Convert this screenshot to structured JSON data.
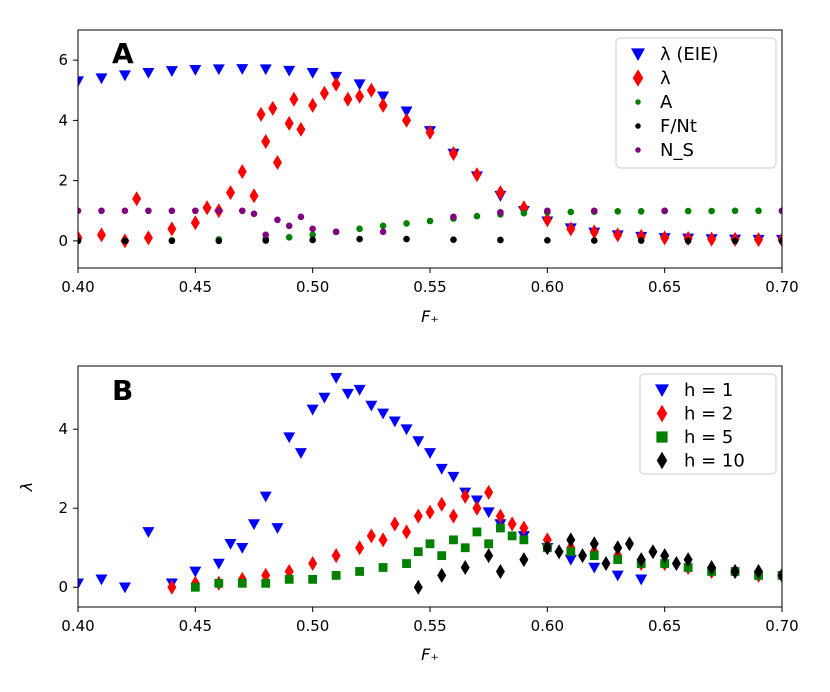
{
  "chart_data": [
    {
      "type": "scatter",
      "panel_label": "A",
      "xlabel": "F₊",
      "ylabel": "",
      "xlim": [
        0.4,
        0.7
      ],
      "ylim": [
        -0.9,
        7.0
      ],
      "xticks": [
        "0.40",
        "0.45",
        "0.50",
        "0.55",
        "0.60",
        "0.65",
        "0.70"
      ],
      "yticks": [
        "0",
        "2",
        "4",
        "6"
      ],
      "legend_position": "top-right",
      "series": [
        {
          "name": "λ (EIE)",
          "marker": "triangle-down",
          "color": "#0000ff",
          "x": [
            0.4,
            0.41,
            0.42,
            0.43,
            0.44,
            0.45,
            0.46,
            0.47,
            0.48,
            0.49,
            0.5,
            0.51,
            0.52,
            0.53,
            0.54,
            0.55,
            0.56,
            0.57,
            0.58,
            0.59,
            0.6,
            0.61,
            0.62,
            0.63,
            0.64,
            0.65,
            0.66,
            0.67,
            0.68,
            0.69,
            0.7
          ],
          "y": [
            5.3,
            5.4,
            5.5,
            5.58,
            5.64,
            5.68,
            5.7,
            5.71,
            5.7,
            5.65,
            5.58,
            5.45,
            5.2,
            4.8,
            4.3,
            3.65,
            2.9,
            2.15,
            1.5,
            1.0,
            0.65,
            0.42,
            0.28,
            0.19,
            0.14,
            0.1,
            0.08,
            0.06,
            0.05,
            0.04,
            0.04
          ]
        },
        {
          "name": "λ",
          "marker": "diamond",
          "color": "#ff0000",
          "x": [
            0.4,
            0.41,
            0.42,
            0.425,
            0.43,
            0.44,
            0.45,
            0.455,
            0.46,
            0.465,
            0.47,
            0.475,
            0.478,
            0.48,
            0.483,
            0.485,
            0.49,
            0.492,
            0.495,
            0.5,
            0.505,
            0.51,
            0.515,
            0.52,
            0.525,
            0.53,
            0.54,
            0.55,
            0.56,
            0.57,
            0.58,
            0.59,
            0.6,
            0.61,
            0.62,
            0.63,
            0.64,
            0.65,
            0.66,
            0.67,
            0.68,
            0.69,
            0.7
          ],
          "y": [
            0.1,
            0.2,
            0.0,
            1.4,
            0.1,
            0.4,
            0.6,
            1.1,
            1.0,
            1.6,
            2.3,
            1.5,
            4.2,
            3.3,
            4.4,
            2.6,
            3.9,
            4.7,
            3.7,
            4.5,
            4.9,
            5.2,
            4.7,
            4.8,
            5.0,
            4.5,
            4.0,
            3.6,
            2.9,
            2.2,
            1.6,
            1.1,
            0.7,
            0.4,
            0.3,
            0.2,
            0.15,
            0.1,
            0.08,
            0.06,
            0.05,
            0.04,
            0.03
          ]
        },
        {
          "name": "A",
          "marker": "circle",
          "color": "#008000",
          "x": [
            0.4,
            0.42,
            0.44,
            0.46,
            0.48,
            0.49,
            0.5,
            0.51,
            0.52,
            0.53,
            0.54,
            0.55,
            0.56,
            0.57,
            0.58,
            0.59,
            0.6,
            0.61,
            0.62,
            0.63,
            0.64,
            0.65,
            0.66,
            0.67,
            0.68,
            0.69,
            0.7
          ],
          "y": [
            0.0,
            0.0,
            0.02,
            0.05,
            0.08,
            0.12,
            0.2,
            0.3,
            0.4,
            0.5,
            0.58,
            0.66,
            0.74,
            0.82,
            0.88,
            0.92,
            0.95,
            0.96,
            0.97,
            0.98,
            0.98,
            0.99,
            0.99,
            0.99,
            1.0,
            1.0,
            1.0
          ]
        },
        {
          "name": "F/Nt",
          "marker": "circle",
          "color": "#000000",
          "x": [
            0.4,
            0.42,
            0.44,
            0.46,
            0.48,
            0.5,
            0.52,
            0.54,
            0.56,
            0.58,
            0.6,
            0.62,
            0.64,
            0.66,
            0.68,
            0.7
          ],
          "y": [
            0.0,
            0.0,
            0.0,
            0.0,
            0.01,
            0.03,
            0.06,
            0.06,
            0.04,
            0.03,
            0.02,
            0.01,
            0.01,
            0.0,
            0.0,
            0.0
          ]
        },
        {
          "name": "N_S",
          "marker": "circle",
          "color": "#800080",
          "x": [
            0.4,
            0.41,
            0.42,
            0.43,
            0.44,
            0.45,
            0.46,
            0.47,
            0.475,
            0.48,
            0.485,
            0.49,
            0.495,
            0.5,
            0.51,
            0.53,
            0.56,
            0.58,
            0.6,
            0.62,
            0.65,
            0.7
          ],
          "y": [
            1.0,
            1.0,
            1.0,
            1.0,
            1.0,
            1.0,
            1.0,
            1.0,
            0.9,
            0.2,
            0.7,
            0.5,
            0.8,
            0.4,
            0.3,
            0.3,
            0.8,
            0.95,
            1.0,
            1.0,
            1.0,
            1.0
          ]
        }
      ]
    },
    {
      "type": "scatter",
      "panel_label": "B",
      "xlabel": "F₊",
      "ylabel": "λ",
      "xlim": [
        0.4,
        0.7
      ],
      "ylim": [
        -0.5,
        5.6
      ],
      "xticks": [
        "0.40",
        "0.45",
        "0.50",
        "0.55",
        "0.60",
        "0.65",
        "0.70"
      ],
      "yticks": [
        "0",
        "2",
        "4"
      ],
      "legend_position": "top-right",
      "series": [
        {
          "name": "h = 1",
          "marker": "triangle-down",
          "color": "#0000ff",
          "x": [
            0.4,
            0.41,
            0.42,
            0.43,
            0.44,
            0.45,
            0.46,
            0.465,
            0.47,
            0.475,
            0.48,
            0.485,
            0.49,
            0.495,
            0.5,
            0.505,
            0.51,
            0.515,
            0.52,
            0.525,
            0.53,
            0.535,
            0.54,
            0.545,
            0.55,
            0.555,
            0.56,
            0.565,
            0.57,
            0.575,
            0.58,
            0.59,
            0.6,
            0.61,
            0.62,
            0.63,
            0.64
          ],
          "y": [
            0.1,
            0.2,
            0.0,
            1.4,
            0.1,
            0.4,
            0.6,
            1.1,
            1.0,
            1.6,
            2.3,
            1.5,
            3.8,
            3.4,
            4.5,
            4.8,
            5.3,
            4.9,
            5.0,
            4.6,
            4.4,
            4.2,
            4.0,
            3.7,
            3.4,
            3.0,
            2.8,
            2.4,
            2.2,
            1.9,
            1.6,
            1.3,
            1.0,
            0.7,
            0.5,
            0.3,
            0.2
          ]
        },
        {
          "name": "h = 2",
          "marker": "diamond",
          "color": "#ff0000",
          "x": [
            0.44,
            0.45,
            0.46,
            0.47,
            0.48,
            0.49,
            0.5,
            0.51,
            0.52,
            0.525,
            0.53,
            0.535,
            0.54,
            0.545,
            0.55,
            0.555,
            0.56,
            0.565,
            0.57,
            0.575,
            0.58,
            0.585,
            0.59,
            0.6,
            0.61,
            0.62,
            0.63,
            0.64,
            0.65,
            0.66,
            0.67,
            0.68,
            0.69,
            0.7
          ],
          "y": [
            0.0,
            0.1,
            0.1,
            0.2,
            0.3,
            0.4,
            0.6,
            0.8,
            1.0,
            1.3,
            1.2,
            1.6,
            1.4,
            1.8,
            1.9,
            2.1,
            1.8,
            2.3,
            2.0,
            2.4,
            1.8,
            1.6,
            1.5,
            1.2,
            1.0,
            0.9,
            0.8,
            0.6,
            0.6,
            0.5,
            0.4,
            0.4,
            0.3,
            0.3
          ]
        },
        {
          "name": "h = 5",
          "marker": "square",
          "color": "#008000",
          "x": [
            0.45,
            0.46,
            0.47,
            0.48,
            0.49,
            0.5,
            0.51,
            0.52,
            0.53,
            0.54,
            0.545,
            0.55,
            0.555,
            0.56,
            0.565,
            0.57,
            0.575,
            0.58,
            0.585,
            0.59,
            0.6,
            0.61,
            0.62,
            0.63,
            0.64,
            0.65,
            0.66,
            0.67,
            0.68,
            0.69,
            0.7
          ],
          "y": [
            0.0,
            0.1,
            0.1,
            0.1,
            0.2,
            0.2,
            0.3,
            0.4,
            0.5,
            0.6,
            0.9,
            1.1,
            0.8,
            1.2,
            1.0,
            1.4,
            1.1,
            1.5,
            1.3,
            1.2,
            1.0,
            0.9,
            0.8,
            0.7,
            0.6,
            0.6,
            0.5,
            0.4,
            0.4,
            0.3,
            0.3
          ]
        },
        {
          "name": "h = 10",
          "marker": "diamond",
          "color": "#000000",
          "x": [
            0.545,
            0.555,
            0.565,
            0.575,
            0.58,
            0.59,
            0.6,
            0.605,
            0.61,
            0.615,
            0.62,
            0.625,
            0.63,
            0.635,
            0.64,
            0.645,
            0.65,
            0.655,
            0.66,
            0.67,
            0.68,
            0.69,
            0.7
          ],
          "y": [
            0.0,
            0.3,
            0.5,
            0.8,
            0.4,
            0.7,
            1.0,
            0.9,
            1.2,
            0.8,
            1.1,
            0.6,
            1.0,
            1.1,
            0.7,
            0.9,
            0.8,
            0.6,
            0.7,
            0.5,
            0.4,
            0.4,
            0.3
          ]
        }
      ]
    }
  ]
}
